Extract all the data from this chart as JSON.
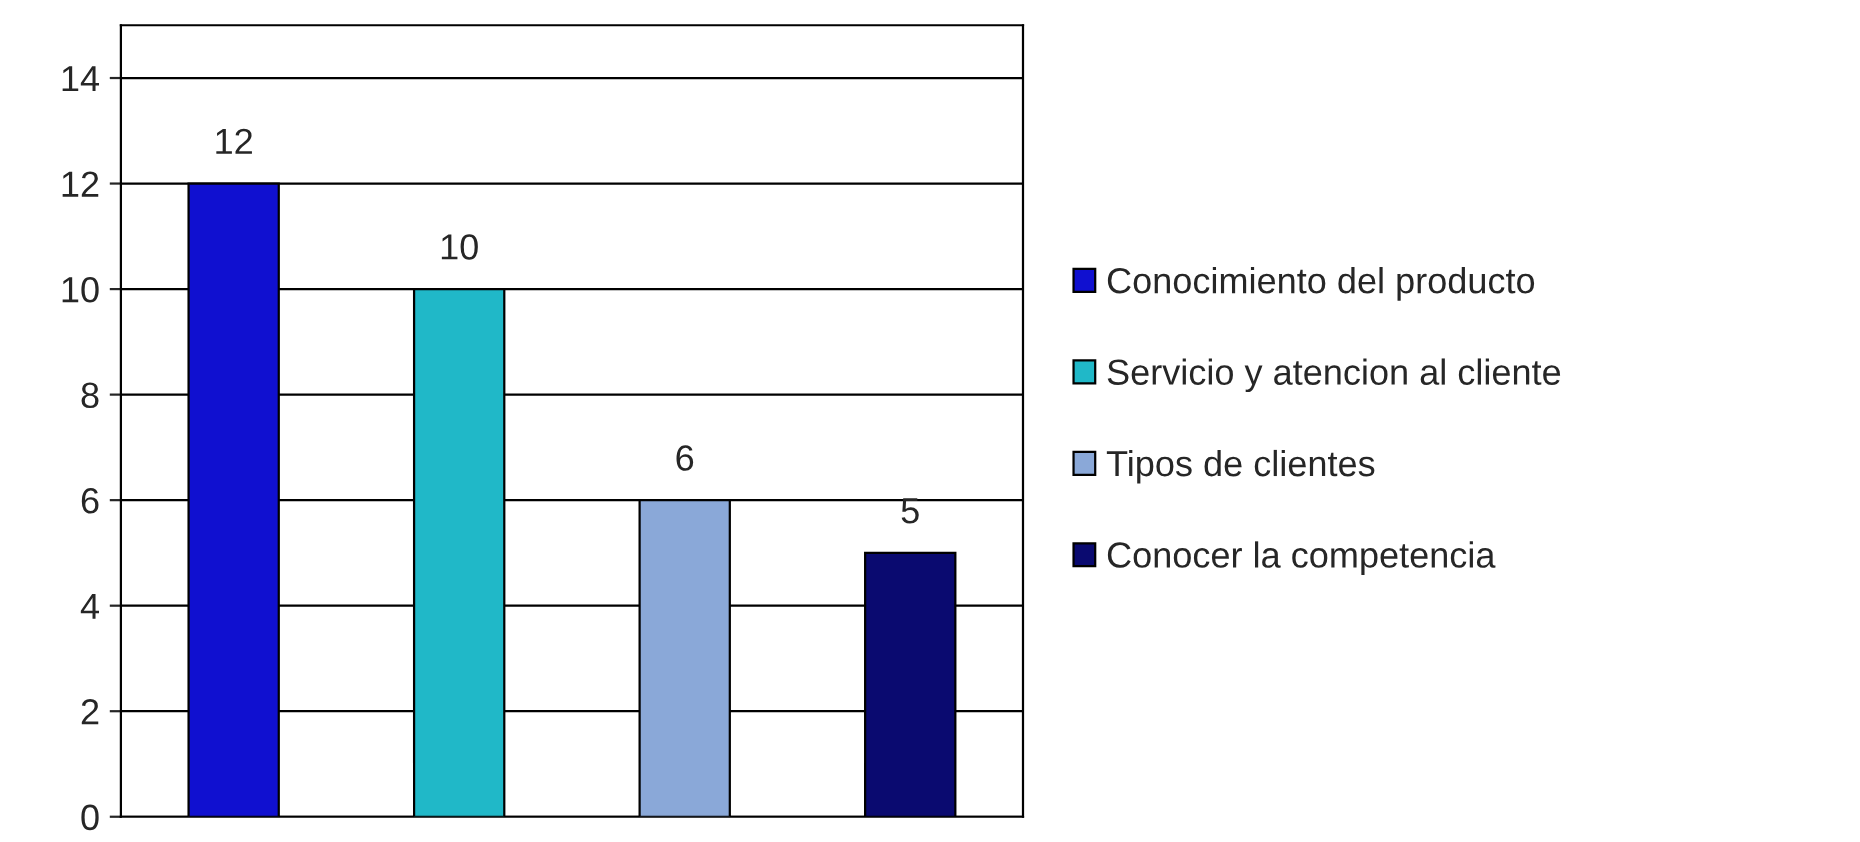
{
  "chart_data": {
    "type": "bar",
    "categories": [
      null,
      null,
      null,
      null
    ],
    "series": [
      {
        "name": "Conocimiento del producto",
        "color": "#1010d0",
        "values": [
          12,
          null,
          null,
          null
        ]
      },
      {
        "name": "Servicio y atencion al cliente",
        "color": "#20b8c8",
        "values": [
          null,
          10,
          null,
          null
        ]
      },
      {
        "name": "Tipos de clientes",
        "color": "#8aa8d8",
        "values": [
          null,
          null,
          6,
          null
        ]
      },
      {
        "name": "Conocer la competencia",
        "color": "#0a0a70",
        "values": [
          null,
          null,
          null,
          5
        ]
      }
    ],
    "ylim": [
      0,
      15
    ],
    "yticks": [
      0,
      2,
      4,
      6,
      8,
      10,
      12,
      14
    ],
    "grid": "y",
    "legend": "right",
    "data_labels": true
  }
}
